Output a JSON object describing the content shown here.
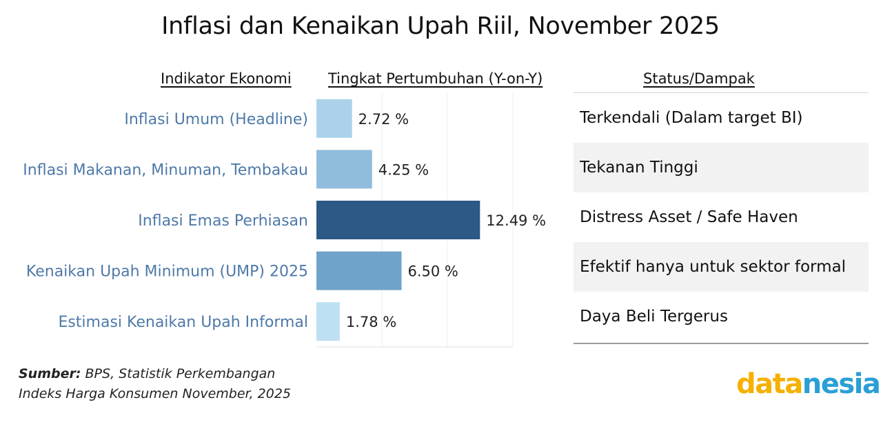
{
  "title": "Inflasi dan Kenaikan Upah Riil, November 2025",
  "headers": {
    "indicator": "Indikator Ekonomi",
    "growth": "Tingkat Pertumbuhan (Y-on-Y)",
    "status": "Status/Dampak"
  },
  "chart_data": {
    "type": "bar",
    "orientation": "horizontal",
    "categories": [
      "Inflasi Umum (Headline)",
      "Inflasi Makanan, Minuman, Tembakau",
      "Inflasi Emas Perhiasan",
      "Kenaikan Upah Minimum (UMP) 2025",
      "Estimasi Kenaikan Upah Informal"
    ],
    "values": [
      2.72,
      4.25,
      12.49,
      6.5,
      1.78
    ],
    "value_labels": [
      "2.72 %",
      "4.25 %",
      "12.49 %",
      "6.50 %",
      "1.78 %"
    ],
    "colors": [
      "#abd2ea",
      "#90bddd",
      "#2c5985",
      "#6fa3ca",
      "#bde0f2"
    ],
    "xlim": [
      0,
      15
    ],
    "grid": true
  },
  "status_rows": [
    {
      "text": "Terkendali (Dalam target BI)",
      "shaded": false
    },
    {
      "text": "Tekanan Tinggi",
      "shaded": true
    },
    {
      "text": "Distress Asset / Safe Haven",
      "shaded": false
    },
    {
      "text": "Efektif hanya untuk sektor formal",
      "shaded": true
    },
    {
      "text": "Daya Beli Tergerus",
      "shaded": false
    }
  ],
  "source": {
    "label": "Sumber:",
    "text": "BPS, Statistik Perkembangan Indeks Harga Konsumen November, 2025"
  },
  "logo": {
    "part1": "data",
    "part2": "nesia"
  },
  "colors": {
    "category_label": "#4e79a7",
    "logo_yellow": "#f5b100",
    "logo_blue": "#2a9fd6"
  }
}
